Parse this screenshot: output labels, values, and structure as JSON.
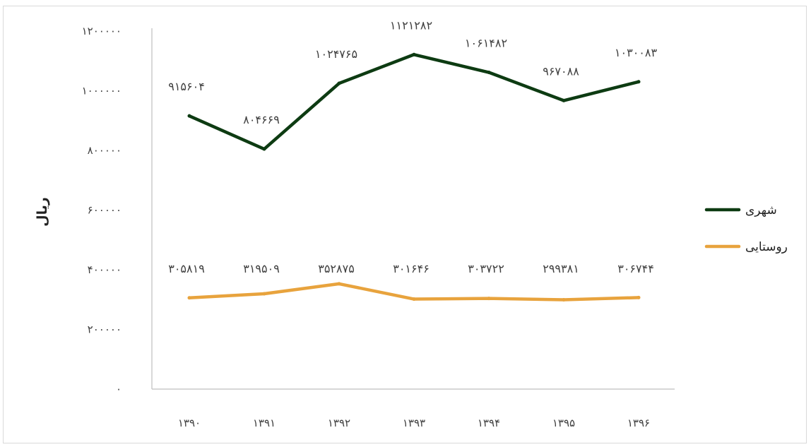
{
  "chart_data": {
    "type": "line",
    "title": "",
    "xlabel": "",
    "ylabel": "ریال",
    "categories": [
      "۱۳۹۰",
      "۱۳۹۱",
      "۱۳۹۲",
      "۱۳۹۳",
      "۱۳۹۴",
      "۱۳۹۵",
      "۱۳۹۶"
    ],
    "yticks": [
      {
        "value": 0,
        "label": "۰"
      },
      {
        "value": 200000,
        "label": "۲۰۰۰۰۰"
      },
      {
        "value": 400000,
        "label": "۴۰۰۰۰۰"
      },
      {
        "value": 600000,
        "label": "۶۰۰۰۰۰"
      },
      {
        "value": 800000,
        "label": "۸۰۰۰۰۰"
      },
      {
        "value": 1000000,
        "label": "۱۰۰۰۰۰۰"
      },
      {
        "value": 1200000,
        "label": "۱۲۰۰۰۰۰"
      }
    ],
    "ylim": [
      0,
      1200000
    ],
    "grid": false,
    "legend_position": "right",
    "series": [
      {
        "name": "شهری",
        "color": "#0d3b12",
        "values": [
          915604,
          804669,
          1024765,
          1121282,
          1061482,
          967088,
          1030083
        ],
        "labels": [
          "۹۱۵۶۰۴",
          "۸۰۴۶۶۹",
          "۱۰۲۴۷۶۵",
          "۱۱۲۱۲۸۲",
          "۱۰۶۱۴۸۲",
          "۹۶۷۰۸۸",
          "۱۰۳۰۰۸۳"
        ]
      },
      {
        "name": "روستایی",
        "color": "#e8a33d",
        "values": [
          305819,
          319509,
          352875,
          301646,
          303722,
          299381,
          306744
        ],
        "labels": [
          "۳۰۵۸۱۹",
          "۳۱۹۵۰۹",
          "۳۵۲۸۷۵",
          "۳۰۱۶۴۶",
          "۳۰۳۷۲۲",
          "۲۹۹۳۸۱",
          "۳۰۶۷۴۴"
        ]
      }
    ]
  }
}
